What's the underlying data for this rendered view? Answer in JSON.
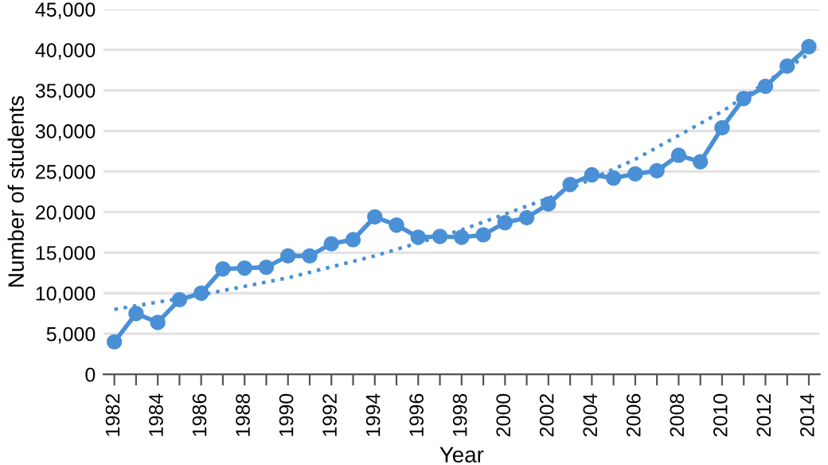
{
  "chart_data": {
    "type": "line",
    "xlabel": "Year",
    "ylabel": "Number of students",
    "x": [
      1982,
      1983,
      1984,
      1985,
      1986,
      1987,
      1988,
      1989,
      1990,
      1991,
      1992,
      1993,
      1994,
      1995,
      1996,
      1997,
      1998,
      1999,
      2000,
      2001,
      2002,
      2003,
      2004,
      2005,
      2006,
      2007,
      2008,
      2009,
      2010,
      2011,
      2012,
      2013,
      2014
    ],
    "series": [
      {
        "color": "#4a90d6",
        "marker": "circle",
        "line_style": "solid",
        "values": [
          4000,
          7500,
          6400,
          9200,
          10000,
          13000,
          13100,
          13200,
          14600,
          14600,
          16100,
          16600,
          19400,
          18400,
          16900,
          17000,
          16900,
          17200,
          18700,
          19300,
          21000,
          23400,
          24600,
          24200,
          24700,
          25100,
          27000,
          26200,
          30400,
          34000,
          35500,
          38000,
          40400
        ]
      },
      {
        "type": "line",
        "color": "#4a90d6",
        "marker": "none",
        "line_style": "dotted",
        "x": [
          1982,
          1986,
          1990,
          1994,
          1998,
          2002,
          2006,
          2010,
          2014
        ],
        "values": [
          8000,
          9800,
          11900,
          14600,
          17800,
          21700,
          26500,
          32400,
          39500
        ]
      }
    ],
    "xlim": [
      1981.5,
      2014.5
    ],
    "xticks": [
      1982,
      {
        "value": 1983,
        "label": null
      },
      1984,
      {
        "value": 1985,
        "label": null
      },
      1986,
      {
        "value": 1987,
        "label": null
      },
      1988,
      {
        "value": 1989,
        "label": null
      },
      1990,
      {
        "value": 1991,
        "label": null
      },
      1992,
      {
        "value": 1993,
        "label": null
      },
      1994,
      {
        "value": 1995,
        "label": null
      },
      1996,
      {
        "value": 1997,
        "label": null
      },
      1998,
      {
        "value": 1999,
        "label": null
      },
      2000,
      {
        "value": 2001,
        "label": null
      },
      2002,
      {
        "value": 2003,
        "label": null
      },
      2004,
      {
        "value": 2005,
        "label": null
      },
      2006,
      {
        "value": 2007,
        "label": null
      },
      2008,
      {
        "value": 2009,
        "label": null
      },
      2010,
      {
        "value": 2011,
        "label": null
      },
      2012,
      {
        "value": 2013,
        "label": null
      },
      2014
    ],
    "ylim": [
      0,
      45000
    ],
    "yticks": [
      {
        "value": 0,
        "label": "0"
      },
      {
        "value": 5000,
        "label": "5,000"
      },
      {
        "value": 10000,
        "label": "10,000"
      },
      {
        "value": 15000,
        "label": "15,000"
      },
      {
        "value": 20000,
        "label": "20,000"
      },
      {
        "value": 25000,
        "label": "25,000"
      },
      {
        "value": 30000,
        "label": "30,000"
      },
      {
        "value": 35000,
        "label": "35,000"
      },
      {
        "value": 40000,
        "label": "40,000"
      },
      {
        "value": 45000,
        "label": "45,000"
      }
    ],
    "grid": "y",
    "legend": false
  }
}
